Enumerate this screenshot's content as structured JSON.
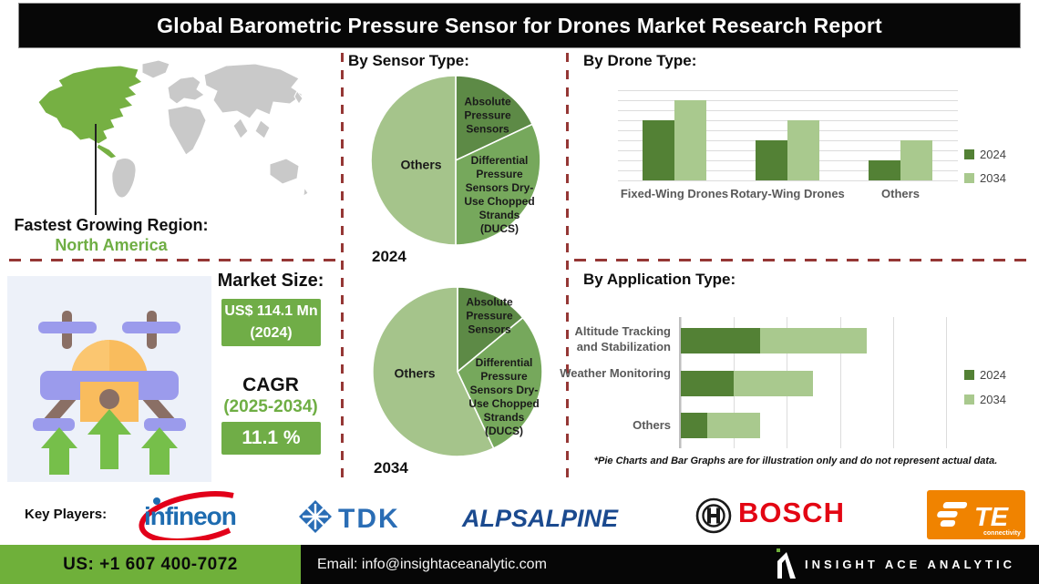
{
  "title": "Global Barometric Pressure Sensor for Drones Market Research Report",
  "colors": {
    "accent_green": "#70ad47",
    "footer_green": "#6fb03a",
    "map_green": "#76b043",
    "map_gray": "#c9c9c9",
    "divider_red": "#953735",
    "series_2024": "#538135",
    "series_2034": "#a9c98e"
  },
  "region": {
    "label": "Fastest Growing Region:",
    "value": "North America"
  },
  "market": {
    "size_label": "Market Size:",
    "size_value": "US$ 114.1 Mn (2024)",
    "cagr_label": "CAGR",
    "cagr_period": "(2025-2034)",
    "cagr_value": "11.1 %"
  },
  "sections": {
    "sensor": {
      "heading": "By Sensor Type:"
    },
    "drone": {
      "heading": "By Drone Type:"
    },
    "application": {
      "heading": "By Application Type:",
      "footnote": "*Pie Charts and Bar Graphs are for illustration only and do not represent actual data."
    }
  },
  "chart_data": [
    {
      "id": "sensor_type_2024",
      "type": "pie",
      "title": "By Sensor Type:",
      "year_label": "2024",
      "slices": [
        {
          "label": "Absolute Pressure Sensors",
          "value": 18,
          "color": "#5d8a46"
        },
        {
          "label": "Differential Pressure Sensors Dry-Use Chopped Strands (DUCS)",
          "value": 32,
          "color": "#76a85c"
        },
        {
          "label": "Others",
          "value": 50,
          "color": "#a5c48b"
        }
      ]
    },
    {
      "id": "sensor_type_2034",
      "type": "pie",
      "title": "By Sensor Type:",
      "year_label": "2034",
      "slices": [
        {
          "label": "Absolute Pressure Sensors",
          "value": 14,
          "color": "#5d8a46"
        },
        {
          "label": "Differential Pressure Sensors Dry-Use Chopped Strands (DUCS)",
          "value": 29,
          "color": "#76a85c"
        },
        {
          "label": "Others",
          "value": 57,
          "color": "#a5c48b"
        }
      ]
    },
    {
      "id": "drone_type",
      "type": "bar",
      "title": "By Drone Type:",
      "categories": [
        "Fixed-Wing Drones",
        "Rotary-Wing Drones",
        "Others"
      ],
      "series": [
        {
          "name": "2024",
          "color": "#538135",
          "values": [
            6,
            4,
            2
          ]
        },
        {
          "name": "2034",
          "color": "#a9c98e",
          "values": [
            8,
            6,
            4
          ]
        }
      ],
      "ylim": [
        0,
        9
      ],
      "grid": true,
      "legend_position": "right",
      "note": "axis unlabeled; values estimated from gridlines (illustrative)"
    },
    {
      "id": "application_type",
      "type": "bar",
      "orientation": "horizontal-stacked",
      "title": "By Application Type:",
      "categories": [
        "Altitude Tracking and Stabilization",
        "Weather Monitoring",
        "Others"
      ],
      "series": [
        {
          "name": "2024",
          "color": "#538135",
          "values": [
            1.5,
            1.0,
            0.5
          ]
        },
        {
          "name": "2034",
          "color": "#a9c98e",
          "values": [
            2.0,
            1.5,
            1.0
          ]
        }
      ],
      "xlim": [
        0,
        5
      ],
      "grid": true,
      "legend_position": "right",
      "note": "axis unlabeled; values estimated from gridlines (illustrative)"
    }
  ],
  "key_players": {
    "label": "Key Players:",
    "companies": [
      "Infineon",
      "TDK",
      "ALPSALPINE",
      "BOSCH",
      "TE Connectivity"
    ],
    "logos": {
      "infineon": "infineon",
      "tdk": "TDK",
      "alps": "ALPSALPINE",
      "bosch": "BOSCH",
      "te": "TE",
      "te_tagline": "connectivity"
    }
  },
  "footer": {
    "phone": "US: +1 607 400-7072",
    "email": "Email: info@insightaceanalytic.com",
    "brand": "INSIGHT ACE ANALYTIC"
  }
}
